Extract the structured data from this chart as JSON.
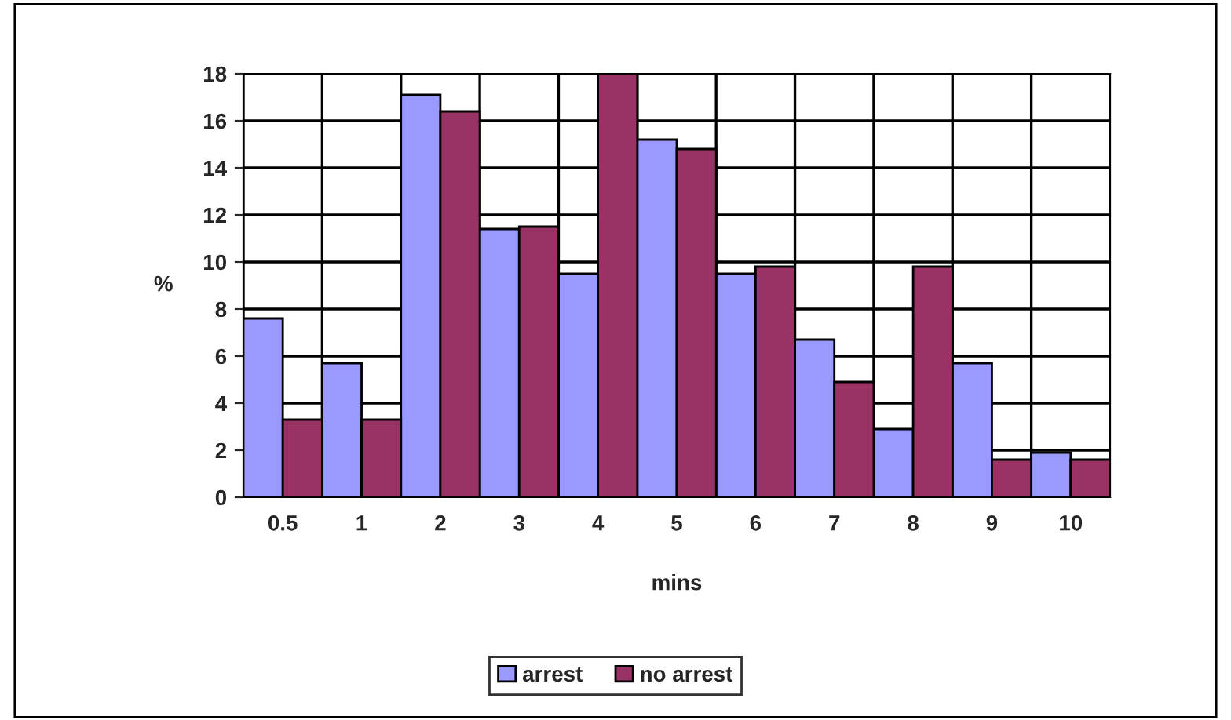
{
  "chart_data": {
    "type": "bar",
    "xlabel": "mins",
    "ylabel": "%",
    "categories": [
      "0.5",
      "1",
      "2",
      "3",
      "4",
      "5",
      "6",
      "7",
      "8",
      "9",
      "10"
    ],
    "series": [
      {
        "name": "arrest",
        "color": "#9999ff",
        "values": [
          7.6,
          5.7,
          17.1,
          11.4,
          9.5,
          15.2,
          9.5,
          6.7,
          2.9,
          5.7,
          1.9
        ]
      },
      {
        "name": "no arrest",
        "color": "#993366",
        "values": [
          3.3,
          3.3,
          16.4,
          11.5,
          18.0,
          14.8,
          9.8,
          4.9,
          9.8,
          1.6,
          1.6
        ]
      }
    ],
    "ylim": [
      0,
      18
    ],
    "yticks": [
      0,
      2,
      4,
      6,
      8,
      10,
      12,
      14,
      16,
      18
    ],
    "grid": true,
    "legend": "bottom"
  }
}
